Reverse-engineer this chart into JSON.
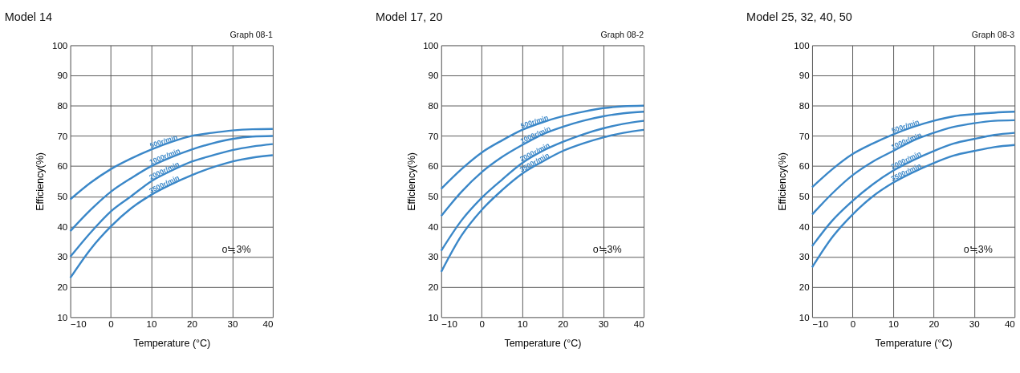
{
  "chart_data": [
    {
      "type": "line",
      "title": "Model 14",
      "xlabel": "Temperature (°C)",
      "ylabel": "Efficiency(%)",
      "x": [
        -10,
        -5,
        0,
        5,
        10,
        15,
        20,
        25,
        30,
        35,
        40
      ],
      "xlim": [
        -10,
        40
      ],
      "xticks": [
        -10,
        0,
        10,
        20,
        30,
        40
      ],
      "ylim": [
        10,
        100
      ],
      "yticks": [
        10,
        20,
        30,
        40,
        50,
        60,
        70,
        80,
        90,
        100
      ],
      "grid": true,
      "annotations": [
        "Graph 08-1",
        "o≒3%"
      ],
      "series": [
        {
          "name": "500r/min",
          "color": "#3a87c8",
          "values": [
            49,
            54.5,
            59,
            62.5,
            65.5,
            68,
            70,
            71,
            71.8,
            72.2,
            72.3
          ]
        },
        {
          "name": "1000r/min",
          "color": "#3a87c8",
          "values": [
            38.5,
            45.5,
            51.5,
            56,
            60,
            63,
            65.5,
            67.5,
            69,
            69.8,
            70
          ]
        },
        {
          "name": "2000r/min",
          "color": "#3a87c8",
          "values": [
            30,
            38,
            45,
            50,
            55,
            58.5,
            61.5,
            63.5,
            65.3,
            66.5,
            67.3
          ]
        },
        {
          "name": "3500r/min",
          "color": "#3a87c8",
          "values": [
            23,
            32.5,
            40,
            46,
            50.5,
            54,
            57,
            59.5,
            61.5,
            62.8,
            63.6
          ]
        }
      ]
    },
    {
      "type": "line",
      "title": "Model 17, 20",
      "xlabel": "Temperature (°C)",
      "ylabel": "Efficiency(%)",
      "x": [
        -10,
        -5,
        0,
        5,
        10,
        15,
        20,
        25,
        30,
        35,
        40
      ],
      "xlim": [
        -10,
        40
      ],
      "xticks": [
        -10,
        0,
        10,
        20,
        30,
        40
      ],
      "ylim": [
        10,
        100
      ],
      "yticks": [
        10,
        20,
        30,
        40,
        50,
        60,
        70,
        80,
        90,
        100
      ],
      "grid": true,
      "annotations": [
        "Graph 08-2",
        "o≒3%"
      ],
      "series": [
        {
          "name": "500r/min",
          "color": "#3a87c8",
          "values": [
            52.5,
            59,
            64.5,
            68.5,
            72,
            74.5,
            76.5,
            78,
            79.2,
            79.8,
            80
          ]
        },
        {
          "name": "1000r/min",
          "color": "#3a87c8",
          "values": [
            43.5,
            51.5,
            58,
            63,
            67,
            70.5,
            73,
            75,
            76.5,
            77.5,
            78
          ]
        },
        {
          "name": "2000r/min",
          "color": "#3a87c8",
          "values": [
            32,
            42,
            49.5,
            55.5,
            61,
            65,
            68,
            70.5,
            72.5,
            74,
            75
          ]
        },
        {
          "name": "3500r/min",
          "color": "#3a87c8",
          "values": [
            25,
            37,
            45.5,
            52,
            57.5,
            61.5,
            65,
            67.5,
            69.5,
            71,
            72
          ]
        }
      ]
    },
    {
      "type": "line",
      "title": "Model 25, 32, 40, 50",
      "xlabel": "Temperature (°C)",
      "ylabel": "Efficiency(%)",
      "x": [
        -10,
        -5,
        0,
        5,
        10,
        15,
        20,
        25,
        30,
        35,
        40
      ],
      "xlim": [
        -10,
        40
      ],
      "xticks": [
        -10,
        0,
        10,
        20,
        30,
        40
      ],
      "ylim": [
        10,
        100
      ],
      "yticks": [
        10,
        20,
        30,
        40,
        50,
        60,
        70,
        80,
        90,
        100
      ],
      "grid": true,
      "annotations": [
        "Graph 08-3",
        "o≒3%"
      ],
      "series": [
        {
          "name": "500r/min",
          "color": "#3a87c8",
          "values": [
            53,
            59,
            64,
            67.5,
            70.5,
            73,
            75,
            76.5,
            77.2,
            77.7,
            78
          ]
        },
        {
          "name": "1000r/min",
          "color": "#3a87c8",
          "values": [
            44,
            51,
            57,
            61.5,
            65,
            68.5,
            71,
            73,
            74.2,
            75,
            75.2
          ]
        },
        {
          "name": "2000r/min",
          "color": "#3a87c8",
          "values": [
            33.5,
            42,
            48.5,
            54,
            58.5,
            62,
            65,
            67.5,
            69,
            70.3,
            71
          ]
        },
        {
          "name": "3500r/min",
          "color": "#3a87c8",
          "values": [
            26.5,
            36.5,
            44,
            50,
            54.5,
            58,
            61,
            63.5,
            65,
            66.3,
            67
          ]
        }
      ]
    }
  ]
}
